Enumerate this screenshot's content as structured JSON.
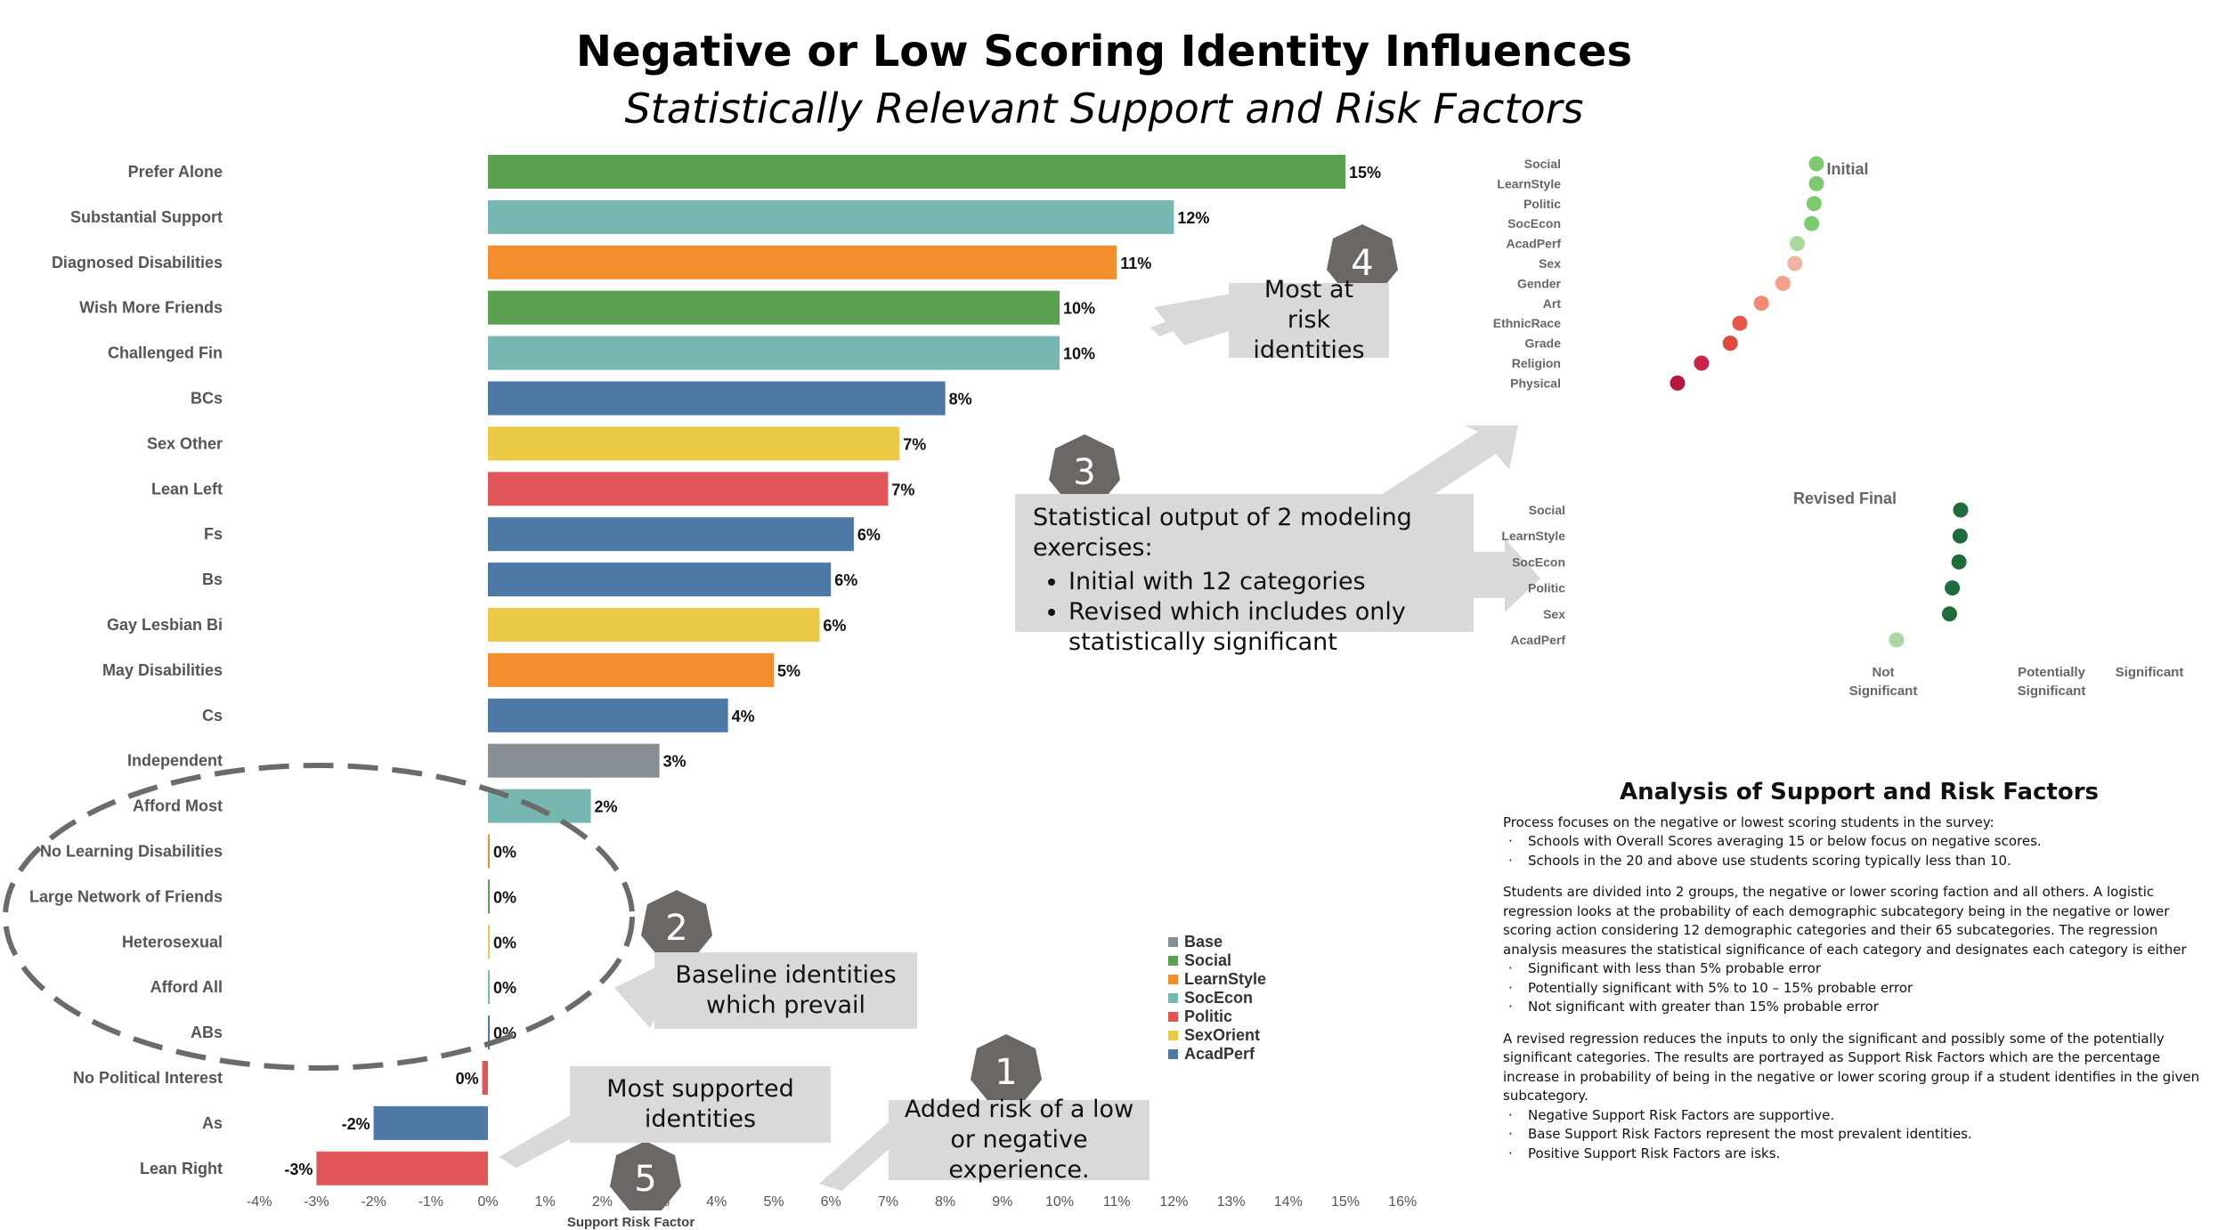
{
  "title": "Negative or Low Scoring Identity Influences",
  "subtitle": "Statistically Relevant Support and Risk Factors",
  "colors": {
    "Base": "#878e94",
    "Social": "#59a14f",
    "LearnStyle": "#f28e2b",
    "SocEcon": "#76b7b2",
    "Politic": "#e15759",
    "SexOrient": "#edc948",
    "AcadPerf": "#4e79a7"
  },
  "chart_data": [
    {
      "type": "bar",
      "orientation": "horizontal",
      "xlabel": "Support Risk Factor",
      "xlim": [
        -4,
        16
      ],
      "x_ticks": [
        "-4%",
        "-3%",
        "-2%",
        "-1%",
        "0%",
        "1%",
        "2%",
        "3%",
        "4%",
        "5%",
        "6%",
        "7%",
        "8%",
        "9%",
        "10%",
        "11%",
        "12%",
        "13%",
        "14%",
        "15%",
        "16%"
      ],
      "legend": [
        "Base",
        "Social",
        "LearnStyle",
        "SocEcon",
        "Politic",
        "SexOrient",
        "AcadPerf"
      ],
      "legend_position": "right",
      "bars": [
        {
          "label": "Prefer Alone",
          "value": 15,
          "text": "15%",
          "group": "Social"
        },
        {
          "label": "Substantial Support",
          "value": 12,
          "text": "12%",
          "group": "SocEcon"
        },
        {
          "label": "Diagnosed Disabilities",
          "value": 11,
          "text": "11%",
          "group": "LearnStyle"
        },
        {
          "label": "Wish More Friends",
          "value": 10,
          "text": "10%",
          "group": "Social"
        },
        {
          "label": "Challenged Fin",
          "value": 10,
          "text": "10%",
          "group": "SocEcon"
        },
        {
          "label": "BCs",
          "value": 8,
          "text": "8%",
          "group": "AcadPerf"
        },
        {
          "label": "Sex Other",
          "value": 7.2,
          "text": "7%",
          "group": "SexOrient"
        },
        {
          "label": "Lean Left",
          "value": 7,
          "text": "7%",
          "group": "Politic"
        },
        {
          "label": "Fs",
          "value": 6.4,
          "text": "6%",
          "group": "AcadPerf"
        },
        {
          "label": "Bs",
          "value": 6,
          "text": "6%",
          "group": "AcadPerf"
        },
        {
          "label": "Gay Lesbian Bi",
          "value": 5.8,
          "text": "6%",
          "group": "SexOrient"
        },
        {
          "label": "May Disabilities",
          "value": 5,
          "text": "5%",
          "group": "LearnStyle"
        },
        {
          "label": "Cs",
          "value": 4.2,
          "text": "4%",
          "group": "AcadPerf"
        },
        {
          "label": "Independent",
          "value": 3,
          "text": "3%",
          "group": "Base"
        },
        {
          "label": "Afford Most",
          "value": 1.8,
          "text": "2%",
          "group": "SocEcon"
        },
        {
          "label": "No Learning Disabilities",
          "value": 0,
          "text": "0%",
          "group": "LearnStyle"
        },
        {
          "label": "Large Network of Friends",
          "value": 0,
          "text": "0%",
          "group": "Social"
        },
        {
          "label": "Heterosexual",
          "value": 0,
          "text": "0%",
          "group": "SexOrient"
        },
        {
          "label": "Afford All",
          "value": 0,
          "text": "0%",
          "group": "SocEcon"
        },
        {
          "label": "ABs",
          "value": 0,
          "text": "0%",
          "group": "AcadPerf"
        },
        {
          "label": "No Political Interest",
          "value": -0.1,
          "text": "0%",
          "group": "Politic"
        },
        {
          "label": "As",
          "value": -2,
          "text": "-2%",
          "group": "AcadPerf"
        },
        {
          "label": "Lean Right",
          "value": -3,
          "text": "-3%",
          "group": "Politic"
        }
      ]
    },
    {
      "type": "scatter",
      "title": "Initial",
      "categories": [
        "Social",
        "LearnStyle",
        "Politic",
        "SocEcon",
        "AcadPerf",
        "Sex",
        "Gender",
        "Art",
        "EthnicRace",
        "Grade",
        "Religion",
        "Physical"
      ],
      "values": [
        0.98,
        0.98,
        0.97,
        0.96,
        0.9,
        0.89,
        0.84,
        0.75,
        0.66,
        0.62,
        0.5,
        0.4
      ],
      "point_colors": [
        "#7ccb6f",
        "#7ccb6f",
        "#7ccb6f",
        "#7ccb6f",
        "#a9d99e",
        "#f0b4a3",
        "#f4a08a",
        "#f08a72",
        "#e8574a",
        "#e04b40",
        "#c9234a",
        "#b5163f"
      ]
    },
    {
      "type": "scatter",
      "title": "Revised Final",
      "categories": [
        "Social",
        "LearnStyle",
        "SocEcon",
        "Politic",
        "Sex",
        "AcadPerf"
      ],
      "values": [
        0.995,
        0.994,
        0.992,
        0.98,
        0.975,
        0.88
      ],
      "point_colors": [
        "#1e6b3b",
        "#1e6b3b",
        "#1e6b3b",
        "#1e6b3b",
        "#1e6b3b",
        "#a9d99e"
      ],
      "x_categories": [
        "Not Significant",
        "Potentially Significant",
        "Significant"
      ]
    }
  ],
  "callouts": {
    "c1": {
      "num": "1",
      "text": "Added risk of a low or negative experience."
    },
    "c2": {
      "num": "2",
      "text": "Baseline identities which prevail"
    },
    "c3": {
      "num": "3",
      "heading": "Statistical output of 2 modeling exercises:",
      "items": [
        "Initial with 12 categories",
        "Revised which includes only statistically significant"
      ]
    },
    "c4": {
      "num": "4",
      "text": "Most at risk identities"
    },
    "c5": {
      "num": "5",
      "text": "Most supported identities"
    }
  },
  "analysis": {
    "title": "Analysis of Support and Risk Factors",
    "p1": "Process focuses on the negative or lowest scoring students in the survey:",
    "p1_items": [
      "Schools with Overall Scores averaging 15 or below focus on negative scores.",
      "Schools in the 20 and above use students scoring typically less than 10."
    ],
    "p2": "Students are divided into 2 groups, the negative or lower scoring faction and all others.  A logistic regression looks at the probability of each demographic subcategory being in the negative or lower scoring action considering 12 demographic categories and their 65 subcategories.  The regression analysis measures the statistical significance of each category and designates each category is either",
    "p2_items": [
      "Significant with less than 5% probable error",
      "Potentially significant with 5% to 10 – 15% probable error",
      "Not significant with greater than 15% probable error"
    ],
    "p3": "A revised regression reduces the inputs to only the significant and possibly some of the potentially significant categories.  The results are portrayed as Support Risk Factors which are the percentage increase in probability of being in the negative or lower scoring group if a student identifies in the given subcategory.",
    "p3_items": [
      "Negative Support Risk Factors are supportive.",
      "Base Support Risk Factors represent the most prevalent identities.",
      "Positive Support Risk Factors are isks."
    ]
  }
}
